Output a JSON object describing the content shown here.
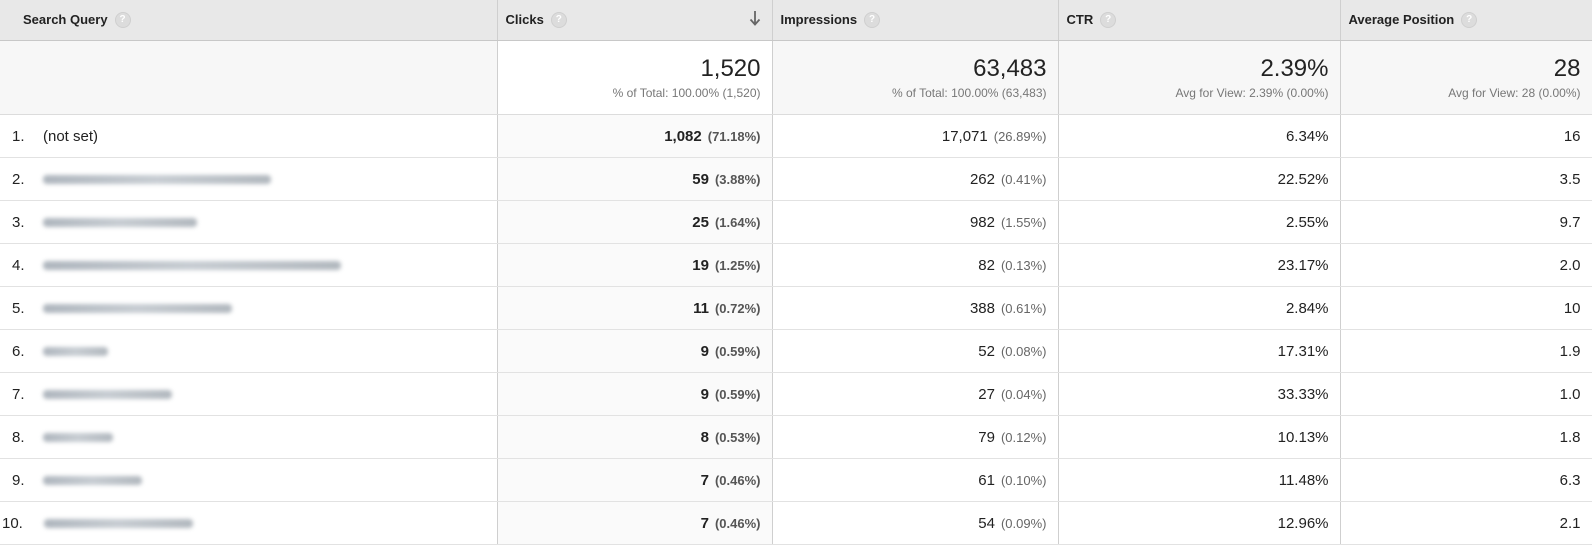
{
  "columns": {
    "query": "Search Query",
    "clicks": "Clicks",
    "impressions": "Impressions",
    "ctr": "CTR",
    "position": "Average Position"
  },
  "help_glyph": "?",
  "sort": {
    "column": "clicks",
    "direction": "descending",
    "icon": "arrow-down-icon"
  },
  "summary": {
    "clicks": {
      "value": "1,520",
      "sub": "% of Total: 100.00% (1,520)"
    },
    "impressions": {
      "value": "63,483",
      "sub": "% of Total: 100.00% (63,483)"
    },
    "ctr": {
      "value": "2.39%",
      "sub": "Avg for View: 2.39% (0.00%)"
    },
    "position": {
      "value": "28",
      "sub": "Avg for View: 28 (0.00%)"
    }
  },
  "rows": [
    {
      "rank": "1.",
      "query": "(not set)",
      "query_blurred": false,
      "blur_fraction": 0,
      "clicks": "1,082",
      "clicks_pct": "(71.18%)",
      "impressions": "17,071",
      "impressions_pct": "(26.89%)",
      "ctr": "6.34%",
      "position": "16"
    },
    {
      "rank": "2.",
      "query": "",
      "query_blurred": true,
      "blur_fraction": 0.46,
      "clicks": "59",
      "clicks_pct": "(3.88%)",
      "impressions": "262",
      "impressions_pct": "(0.41%)",
      "ctr": "22.52%",
      "position": "3.5"
    },
    {
      "rank": "3.",
      "query": "",
      "query_blurred": true,
      "blur_fraction": 0.31,
      "clicks": "25",
      "clicks_pct": "(1.64%)",
      "impressions": "982",
      "impressions_pct": "(1.55%)",
      "ctr": "2.55%",
      "position": "9.7"
    },
    {
      "rank": "4.",
      "query": "",
      "query_blurred": true,
      "blur_fraction": 0.6,
      "clicks": "19",
      "clicks_pct": "(1.25%)",
      "impressions": "82",
      "impressions_pct": "(0.13%)",
      "ctr": "23.17%",
      "position": "2.0"
    },
    {
      "rank": "5.",
      "query": "",
      "query_blurred": true,
      "blur_fraction": 0.38,
      "clicks": "11",
      "clicks_pct": "(0.72%)",
      "impressions": "388",
      "impressions_pct": "(0.61%)",
      "ctr": "2.84%",
      "position": "10"
    },
    {
      "rank": "6.",
      "query": "",
      "query_blurred": true,
      "blur_fraction": 0.13,
      "clicks": "9",
      "clicks_pct": "(0.59%)",
      "impressions": "52",
      "impressions_pct": "(0.08%)",
      "ctr": "17.31%",
      "position": "1.9"
    },
    {
      "rank": "7.",
      "query": "",
      "query_blurred": true,
      "blur_fraction": 0.26,
      "clicks": "9",
      "clicks_pct": "(0.59%)",
      "impressions": "27",
      "impressions_pct": "(0.04%)",
      "ctr": "33.33%",
      "position": "1.0"
    },
    {
      "rank": "8.",
      "query": "",
      "query_blurred": true,
      "blur_fraction": 0.14,
      "clicks": "8",
      "clicks_pct": "(0.53%)",
      "impressions": "79",
      "impressions_pct": "(0.12%)",
      "ctr": "10.13%",
      "position": "1.8"
    },
    {
      "rank": "9.",
      "query": "",
      "query_blurred": true,
      "blur_fraction": 0.2,
      "clicks": "7",
      "clicks_pct": "(0.46%)",
      "impressions": "61",
      "impressions_pct": "(0.10%)",
      "ctr": "11.48%",
      "position": "6.3"
    },
    {
      "rank": "10.",
      "query": "",
      "query_blurred": true,
      "blur_fraction": 0.3,
      "clicks": "7",
      "clicks_pct": "(0.46%)",
      "impressions": "54",
      "impressions_pct": "(0.09%)",
      "ctr": "12.96%",
      "position": "2.1"
    }
  ]
}
